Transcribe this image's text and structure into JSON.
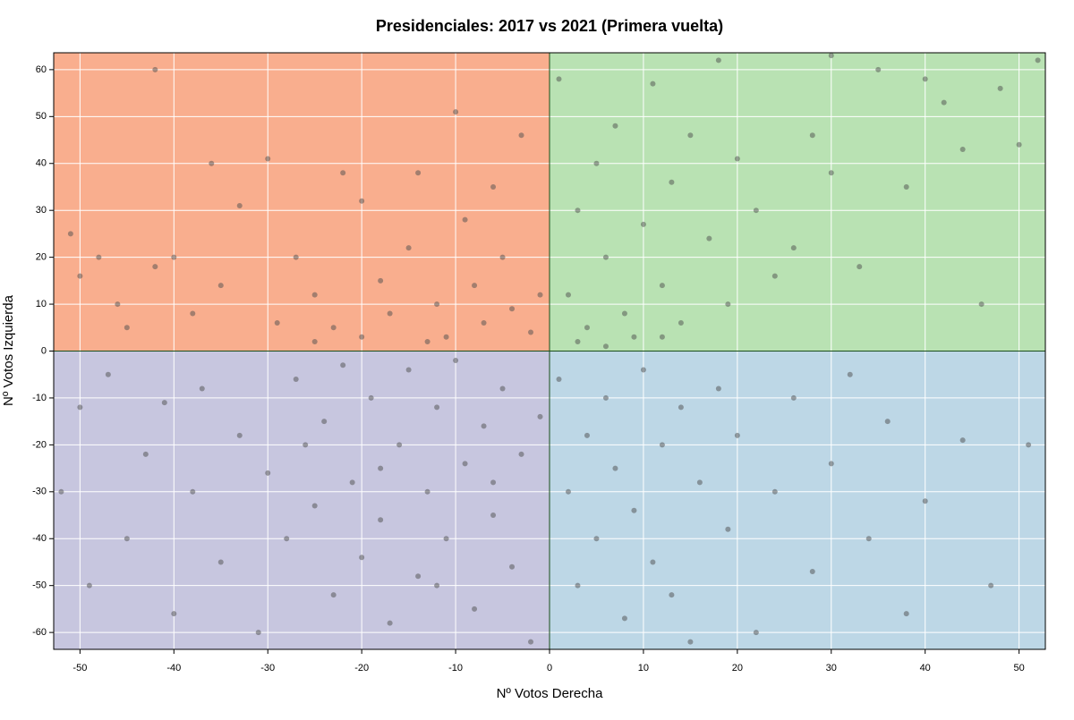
{
  "chart_data": {
    "type": "scatter",
    "title": "Presidenciales: 2017 vs 2021 (Primera vuelta)",
    "x_label": "Nº Votos Derecha",
    "y_label": "Nº Votos Izquierda",
    "xlim": [
      -52.8,
      52.8
    ],
    "ylim": [
      -63.6,
      63.6
    ],
    "xticks": [
      -50,
      -40,
      -30,
      -20,
      -10,
      0,
      10,
      20,
      30,
      40,
      50
    ],
    "yticks": [
      -60,
      -50,
      -40,
      -30,
      -20,
      -10,
      0,
      10,
      20,
      30,
      40,
      50,
      60
    ],
    "grid": true,
    "quadrant_colors": {
      "top_left": "#f9ae8e",
      "top_right": "#b9e2b3",
      "bottom_left": "#c7c6df",
      "bottom_right": "#bdd7e6"
    },
    "point_color": "#4d4d4d",
    "series": [
      {
        "x": [
          -51,
          -50,
          -48,
          -46,
          -45,
          -42,
          -42,
          -40,
          -38,
          -36,
          -35,
          -33,
          -30,
          -29,
          -27,
          -25,
          -23,
          -22,
          -20,
          -18,
          -17,
          -15,
          -14,
          -12,
          -11,
          -10,
          -9,
          -8,
          -7,
          -6,
          -5,
          -4,
          -3,
          -2,
          -1,
          -13,
          -20,
          -25,
          1,
          2,
          3,
          4,
          5,
          6,
          7,
          8,
          9,
          10,
          11,
          12,
          13,
          14,
          15,
          17,
          18,
          19,
          20,
          22,
          24,
          26,
          28,
          30,
          30,
          33,
          35,
          38,
          40,
          42,
          44,
          46,
          48,
          50,
          52,
          3,
          6,
          12,
          -52,
          -50,
          -49,
          -47,
          -45,
          -43,
          -41,
          -40,
          -38,
          -37,
          -35,
          -33,
          -31,
          -30,
          -28,
          -27,
          -25,
          -24,
          -23,
          -22,
          -21,
          -20,
          -19,
          -18,
          -17,
          -16,
          -15,
          -14,
          -13,
          -12,
          -11,
          -10,
          -9,
          -8,
          -7,
          -6,
          -5,
          -4,
          -3,
          -2,
          -1,
          -26,
          -18,
          -12,
          -6,
          1,
          2,
          3,
          4,
          5,
          6,
          7,
          8,
          9,
          10,
          11,
          12,
          13,
          14,
          15,
          16,
          18,
          19,
          20,
          22,
          24,
          26,
          28,
          30,
          32,
          34,
          36,
          38,
          40,
          44,
          47,
          51
        ],
        "y": [
          25,
          16,
          20,
          10,
          5,
          60,
          18,
          20,
          8,
          40,
          14,
          31,
          41,
          6,
          20,
          12,
          5,
          38,
          32,
          15,
          8,
          22,
          38,
          10,
          3,
          51,
          28,
          14,
          6,
          35,
          20,
          9,
          46,
          4,
          12,
          2,
          3,
          2,
          58,
          12,
          30,
          5,
          40,
          20,
          48,
          8,
          3,
          27,
          57,
          14,
          36,
          6,
          46,
          24,
          62,
          10,
          41,
          30,
          16,
          22,
          46,
          63,
          38,
          18,
          60,
          35,
          58,
          53,
          43,
          10,
          56,
          44,
          62,
          2,
          1,
          3,
          -30,
          -12,
          -50,
          -5,
          -40,
          -22,
          -11,
          -56,
          -30,
          -8,
          -45,
          -18,
          -60,
          -26,
          -40,
          -6,
          -33,
          -15,
          -52,
          -3,
          -28,
          -44,
          -10,
          -36,
          -58,
          -20,
          -4,
          -48,
          -30,
          -12,
          -40,
          -2,
          -24,
          -55,
          -16,
          -35,
          -8,
          -46,
          -22,
          -62,
          -14,
          -20,
          -25,
          -50,
          -28,
          -6,
          -30,
          -50,
          -18,
          -40,
          -10,
          -25,
          -57,
          -34,
          -4,
          -45,
          -20,
          -52,
          -12,
          -62,
          -28,
          -8,
          -38,
          -18,
          -60,
          -30,
          -10,
          -47,
          -24,
          -5,
          -40,
          -15,
          -56,
          -32,
          -19,
          -50,
          -20
        ]
      }
    ]
  }
}
